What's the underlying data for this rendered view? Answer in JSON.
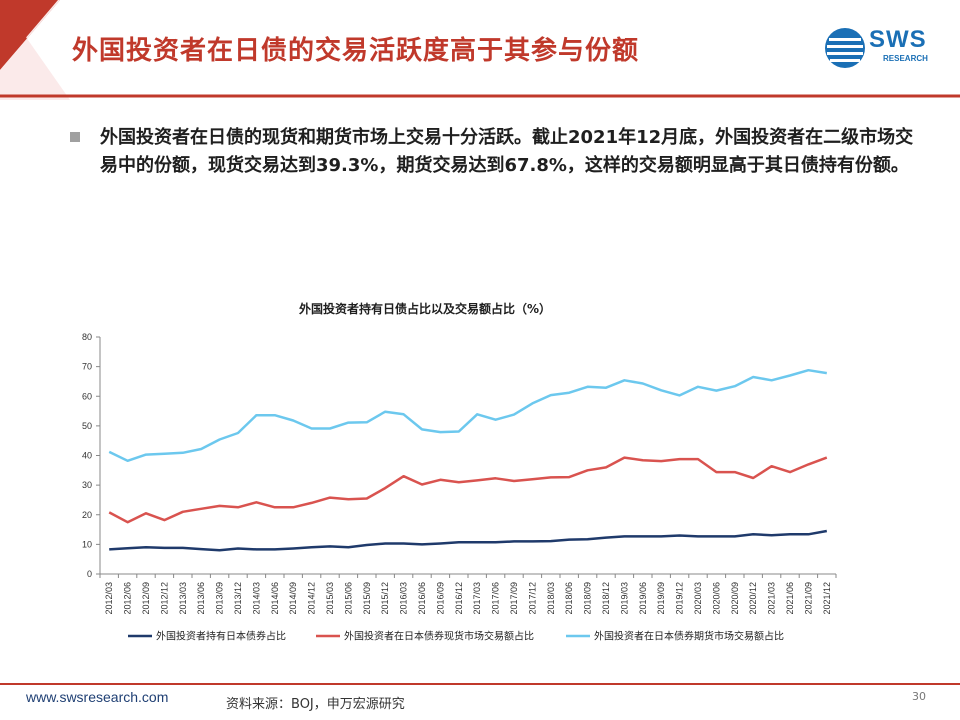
{
  "slide": {
    "title": "外国投资者在日债的交易活跃度高于其参与份额",
    "logo_text": "SWS",
    "logo_sub": "RESEARCH",
    "bullet": "外国投资者在日债的现货和期货市场上交易十分活跃。截止2021年12月底，外国投资者在二级市场交易中的份额，现货交易达到39.3%，期货交易达到67.8%，这样的交易额明显高于其日债持有份额。"
  },
  "footer": {
    "url": "www.swsresearch.com",
    "source": "资料来源：BOJ，申万宏源研究",
    "page": "30"
  },
  "colors": {
    "title_red": "#c0392b",
    "brand_blue": "#1a6fb5",
    "series_navy": "#1f3a6b",
    "series_red": "#d9534f",
    "series_lightblue": "#6cc8ee"
  },
  "chart_data": {
    "type": "line",
    "title": "外国投资者持有日债占比以及交易额占比（%）",
    "xlabel": "",
    "ylabel": "",
    "ylim": [
      0,
      80
    ],
    "yticks": [
      0,
      10,
      20,
      30,
      40,
      50,
      60,
      70,
      80
    ],
    "grid": false,
    "legend_position": "bottom",
    "categories": [
      "2012/03",
      "2012/06",
      "2012/09",
      "2012/12",
      "2013/03",
      "2013/06",
      "2013/09",
      "2013/12",
      "2014/03",
      "2014/06",
      "2014/09",
      "2014/12",
      "2015/03",
      "2015/06",
      "2015/09",
      "2015/12",
      "2016/03",
      "2016/06",
      "2016/09",
      "2016/12",
      "2017/03",
      "2017/06",
      "2017/09",
      "2017/12",
      "2018/03",
      "2018/06",
      "2018/09",
      "2018/12",
      "2019/03",
      "2019/06",
      "2019/09",
      "2019/12",
      "2020/03",
      "2020/06",
      "2020/09",
      "2020/12",
      "2021/03",
      "2021/06",
      "2021/09",
      "2021/12"
    ],
    "series": [
      {
        "name": "外国投资者持有日本债券占比",
        "color": "#1f3a6b",
        "values": [
          8.3,
          8.7,
          9.0,
          8.8,
          8.8,
          8.4,
          8.0,
          8.6,
          8.3,
          8.3,
          8.6,
          9.0,
          9.3,
          9.0,
          9.8,
          10.3,
          10.3,
          10.0,
          10.3,
          10.7,
          10.7,
          10.7,
          11.0,
          11.0,
          11.1,
          11.6,
          11.7,
          12.3,
          12.7,
          12.7,
          12.7,
          13.0,
          12.7,
          12.7,
          12.7,
          13.4,
          13.1,
          13.4,
          13.4,
          14.5
        ]
      },
      {
        "name": "外国投资者在日本债券现货市场交易额占比",
        "color": "#d9534f",
        "values": [
          20.8,
          17.5,
          20.5,
          18.2,
          21.0,
          22.0,
          23.0,
          22.5,
          24.2,
          22.5,
          22.5,
          24.0,
          25.8,
          25.2,
          25.5,
          29.0,
          33.0,
          30.2,
          31.8,
          31.0,
          31.6,
          32.3,
          31.4,
          32.0,
          32.6,
          32.7,
          35.0,
          36.0,
          39.3,
          38.4,
          38.1,
          38.8,
          38.8,
          34.4,
          34.4,
          32.4,
          36.4,
          34.4,
          37.0,
          39.3
        ]
      },
      {
        "name": "外国投资者在日本债券期货市场交易额占比",
        "color": "#6cc8ee",
        "values": [
          41.2,
          38.2,
          40.3,
          40.6,
          40.9,
          42.2,
          45.4,
          47.6,
          53.6,
          53.6,
          51.8,
          49.1,
          49.1,
          51.1,
          51.2,
          54.8,
          53.9,
          48.8,
          47.9,
          48.1,
          53.9,
          52.1,
          53.8,
          57.6,
          60.4,
          61.2,
          63.2,
          62.9,
          65.4,
          64.3,
          62.0,
          60.3,
          63.2,
          61.9,
          63.4,
          66.5,
          65.4,
          67.0,
          68.8,
          67.8
        ]
      }
    ]
  }
}
